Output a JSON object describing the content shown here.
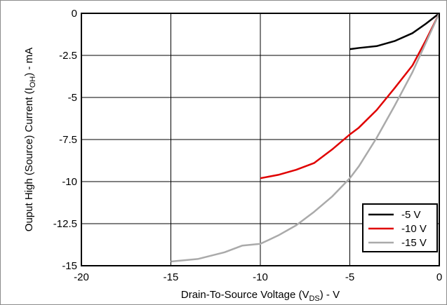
{
  "chart_data": {
    "type": "line",
    "xlabel": "Drain-To-Source Voltage (V",
    "xlabel_sub": "DS",
    "xlabel_tail": ") - V",
    "ylabel": "Ouput High (Source) Current (I",
    "ylabel_sub": "OH",
    "ylabel_tail": ") - mA",
    "xlim": [
      -20,
      0
    ],
    "ylim": [
      -15,
      0
    ],
    "xticks": [
      -20,
      -15,
      -10,
      -5,
      0
    ],
    "yticks": [
      0,
      -2.5,
      -5,
      -7.5,
      -10,
      -12.5,
      -15
    ],
    "xtick_labels": [
      "-20",
      "-15",
      "-10",
      "-5",
      "0"
    ],
    "ytick_labels": [
      "0",
      "-2.5",
      "-5",
      "-7.5",
      "-10",
      "-12.5",
      "-15"
    ],
    "grid": true,
    "legend_position": "bottom-right",
    "series": [
      {
        "name": "-5 V",
        "color": "#000000",
        "x": [
          -5.0,
          -4.5,
          -3.5,
          -2.5,
          -1.5,
          -0.75,
          0
        ],
        "y": [
          -2.13,
          -2.06,
          -1.95,
          -1.65,
          -1.18,
          -0.62,
          0
        ]
      },
      {
        "name": "-10 V",
        "color": "#e00000",
        "x": [
          -10.0,
          -9.0,
          -8.0,
          -7.0,
          -6.0,
          -5.0,
          -4.5,
          -3.5,
          -2.5,
          -1.5,
          -0.75,
          0
        ],
        "y": [
          -9.8,
          -9.6,
          -9.3,
          -8.9,
          -8.1,
          -7.2,
          -6.8,
          -5.75,
          -4.45,
          -3.1,
          -1.6,
          0
        ]
      },
      {
        "name": "-15 V",
        "color": "#aaaaaa",
        "x": [
          -15.0,
          -13.5,
          -12.0,
          -11.0,
          -10.0,
          -9.0,
          -8.0,
          -7.0,
          -6.0,
          -5.0,
          -4.5,
          -3.5,
          -2.5,
          -1.5,
          -0.75,
          0
        ],
        "y": [
          -14.75,
          -14.6,
          -14.2,
          -13.8,
          -13.7,
          -13.2,
          -12.6,
          -11.8,
          -10.9,
          -9.8,
          -9.1,
          -7.4,
          -5.5,
          -3.5,
          -1.75,
          0
        ]
      }
    ]
  }
}
